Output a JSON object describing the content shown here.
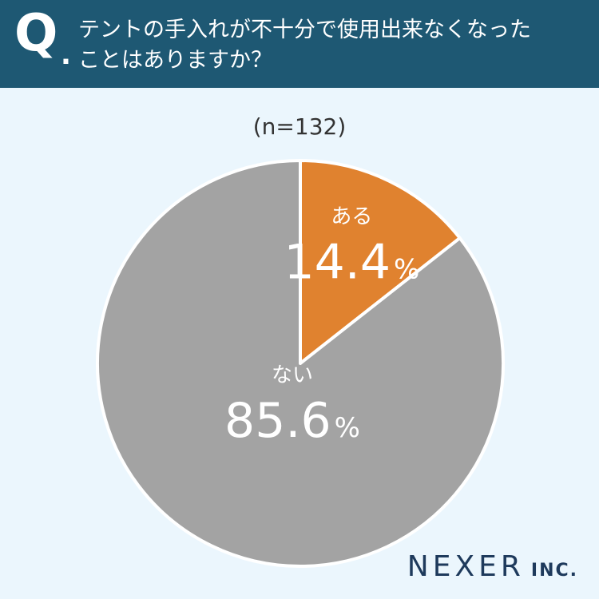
{
  "header": {
    "q_mark": "Q",
    "q_dot": ".",
    "question_line1": "テントの手入れが不十分で使用出来なくなった",
    "question_line2": "ことはありますか？"
  },
  "sample_size": "(n=132)",
  "brand": {
    "main": "NEXER",
    "sub": "INC."
  },
  "colors": {
    "header_bg": "#1e5873",
    "page_bg": "#ebf6fd",
    "slice_aru": "#e0822f",
    "slice_nai": "#a3a3a3"
  },
  "chart_data": {
    "type": "pie",
    "title": "",
    "slices": [
      {
        "label": "ある",
        "value": 14.4,
        "value_text": "14.4",
        "unit": "%",
        "color": "#e0822f"
      },
      {
        "label": "ない",
        "value": 85.6,
        "value_text": "85.6",
        "unit": "%",
        "color": "#a3a3a3"
      }
    ],
    "start": "12 o'clock",
    "direction": "clockwise"
  }
}
